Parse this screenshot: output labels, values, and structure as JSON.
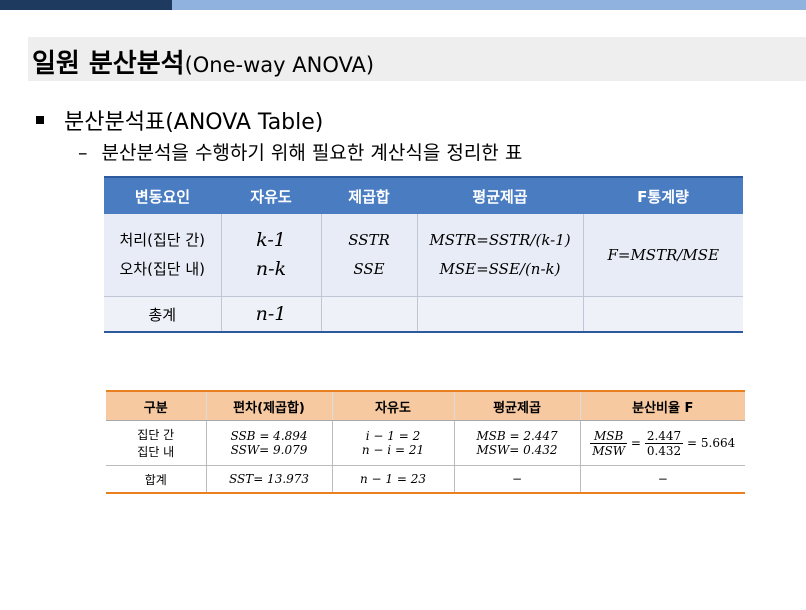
{
  "title": {
    "main": "일원 분산분석",
    "sub": "(One-way ANOVA)"
  },
  "bullet": "분산분석표(ANOVA Table)",
  "subbullet": "분산분석을 수행하기 위해 필요한 계산식을 정리한 표",
  "colors": {
    "topbar_dark": "#1f3a5f",
    "topbar_light": "#8fb3de",
    "table1_header": "#4a7cc2",
    "table2_header": "#f7c9a1",
    "table2_border": "#e8801f"
  },
  "table1": {
    "headers": [
      "변동요인",
      "자유도",
      "제곱합",
      "평균제곱",
      "F통계량"
    ],
    "rows": {
      "treat_label": "처리(집단 간)",
      "error_label": "오차(집단 내)",
      "treat_df": "k-1",
      "error_df": "n-k",
      "treat_ss": "SSTR",
      "error_ss": "SSE",
      "treat_ms": "MSTR=SSTR/(k-1)",
      "error_ms": "MSE=SSE/(n-k)",
      "f": "F=MSTR/MSE",
      "total_label": "총계",
      "total_df": "n-1"
    }
  },
  "table2": {
    "headers": [
      "구분",
      "편차(제곱합)",
      "자유도",
      "평균제곱",
      "분산비율 F"
    ],
    "between_label": "집단 간",
    "within_label": "집단 내",
    "ssb": "SSB = 4.894",
    "ssw": "SSW= 9.079",
    "df_between": "i − 1 = 2",
    "df_within": "n − i = 21",
    "msb": "MSB = 2.447",
    "msw": "MSW= 0.432",
    "f_num1": "MSB",
    "f_den1": "MSW",
    "f_num2": "2.447",
    "f_den2": "0.432",
    "f_result": "= 5.664",
    "total_label": "합계",
    "sst": "SST= 13.973",
    "df_total": "n − 1 = 23",
    "ms_total": "−",
    "f_total": "−"
  }
}
